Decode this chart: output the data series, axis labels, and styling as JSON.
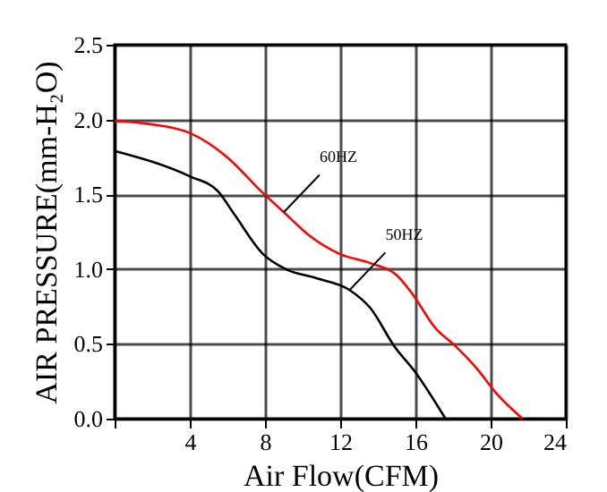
{
  "chart_data": {
    "type": "line",
    "xlabel": "Air Flow(CFM)",
    "ylabel": "AIR PRESSURE(mm-H₂O)",
    "xlim": [
      0,
      24
    ],
    "xticks": [
      {
        "value": 0,
        "label": null
      },
      4,
      8,
      12,
      16,
      20,
      24
    ],
    "ylim": [
      0,
      2.5
    ],
    "yticks": [
      {
        "value": 0,
        "label": "0.0"
      },
      0.5,
      {
        "value": 1,
        "label": "1.0"
      },
      1.5,
      {
        "value": 2,
        "label": "2.0"
      },
      2.5
    ],
    "grid": true,
    "legend": false,
    "marker": "none",
    "line_style": "solid",
    "series": [
      {
        "color": "#ff0000",
        "x": [
          0,
          1.84,
          4,
          5.97,
          7.8,
          9,
          10.4,
          12,
          13.6,
          15,
          15.8,
          17.1,
          18,
          19.3,
          20.3,
          21.7
        ],
        "values": [
          1.99,
          1.97,
          1.91,
          1.75,
          1.52,
          1.38,
          1.22,
          1.1,
          1.04,
          0.96,
          0.84,
          0.6,
          0.5,
          0.33,
          0.17,
          0
        ]
      },
      {
        "color": "#000000",
        "x": [
          0,
          4,
          5.5,
          6.4,
          7.9,
          9.1,
          10.7,
          12.5,
          13.6,
          14.9,
          16,
          17.6
        ],
        "values": [
          1.79,
          1.62,
          1.52,
          1.36,
          1.1,
          1.0,
          0.94,
          0.86,
          0.74,
          0.48,
          0.31,
          0
        ]
      }
    ],
    "annotations": [
      {
        "text": "60HZ",
        "x": 9,
        "y": 1.38
      },
      {
        "text": "50HZ",
        "x": 12.5,
        "y": 0.86
      }
    ]
  }
}
